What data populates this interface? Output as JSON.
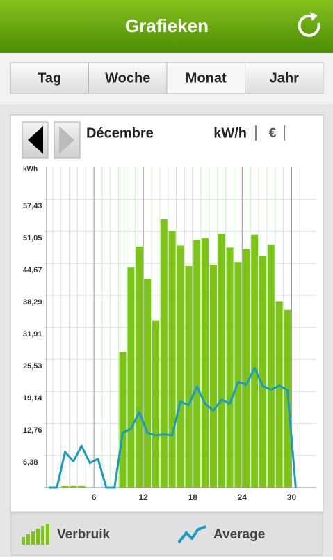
{
  "header": {
    "title": "Grafieken"
  },
  "tabs": [
    "Tag",
    "Woche",
    "Monat",
    "Jahr"
  ],
  "selected_tab": 2,
  "month": "Décembre",
  "units": [
    "kW/h",
    "€"
  ],
  "chart_data": {
    "type": "bar",
    "y_label": "kWh",
    "x": [
      1,
      2,
      3,
      4,
      5,
      6,
      7,
      8,
      9,
      10,
      11,
      12,
      13,
      14,
      15,
      16,
      17,
      18,
      19,
      20,
      21,
      22,
      23,
      24,
      25,
      26,
      27,
      28,
      29,
      30,
      31
    ],
    "series": [
      {
        "name": "Verbruik",
        "type": "bar",
        "color": "#7cc516",
        "values": [
          0,
          0,
          0.3,
          0.3,
          0.3,
          0,
          0,
          0,
          0,
          27.0,
          43.8,
          48.0,
          41.6,
          33.2,
          53.4,
          51.1,
          48.2,
          44.1,
          49.3,
          49.7,
          44.4,
          50.5,
          47.8,
          44.9,
          47.5,
          50.4,
          46.1,
          48.3,
          37.1,
          35.4,
          0
        ]
      },
      {
        "name": "Average",
        "type": "line",
        "color": "#1a9bc4",
        "values": [
          0,
          0,
          7.1,
          5.2,
          8.3,
          4.9,
          5.7,
          0,
          0,
          10.9,
          11.7,
          15.0,
          10.9,
          10.4,
          10.6,
          10.4,
          17.1,
          16.4,
          20.1,
          16.7,
          15.3,
          17.5,
          16.7,
          21.0,
          20.5,
          23.8,
          20.2,
          19.5,
          20.3,
          19.4,
          0
        ]
      }
    ],
    "xlim": [
      0,
      33
    ],
    "xticks": [
      6,
      12,
      18,
      24,
      30
    ],
    "ylim": [
      0,
      63.8
    ],
    "yticks": [
      {
        "value": 6.38,
        "label": "6,38"
      },
      {
        "value": 12.76,
        "label": "12,76"
      },
      {
        "value": 19.14,
        "label": "19,14"
      },
      {
        "value": 25.53,
        "label": "25,53"
      },
      {
        "value": 31.91,
        "label": "31,91"
      },
      {
        "value": 38.29,
        "label": "38,29"
      },
      {
        "value": 44.67,
        "label": "44,67"
      },
      {
        "value": 51.05,
        "label": "51,05"
      },
      {
        "value": 57.43,
        "label": "57,43"
      }
    ],
    "grid": true
  }
}
